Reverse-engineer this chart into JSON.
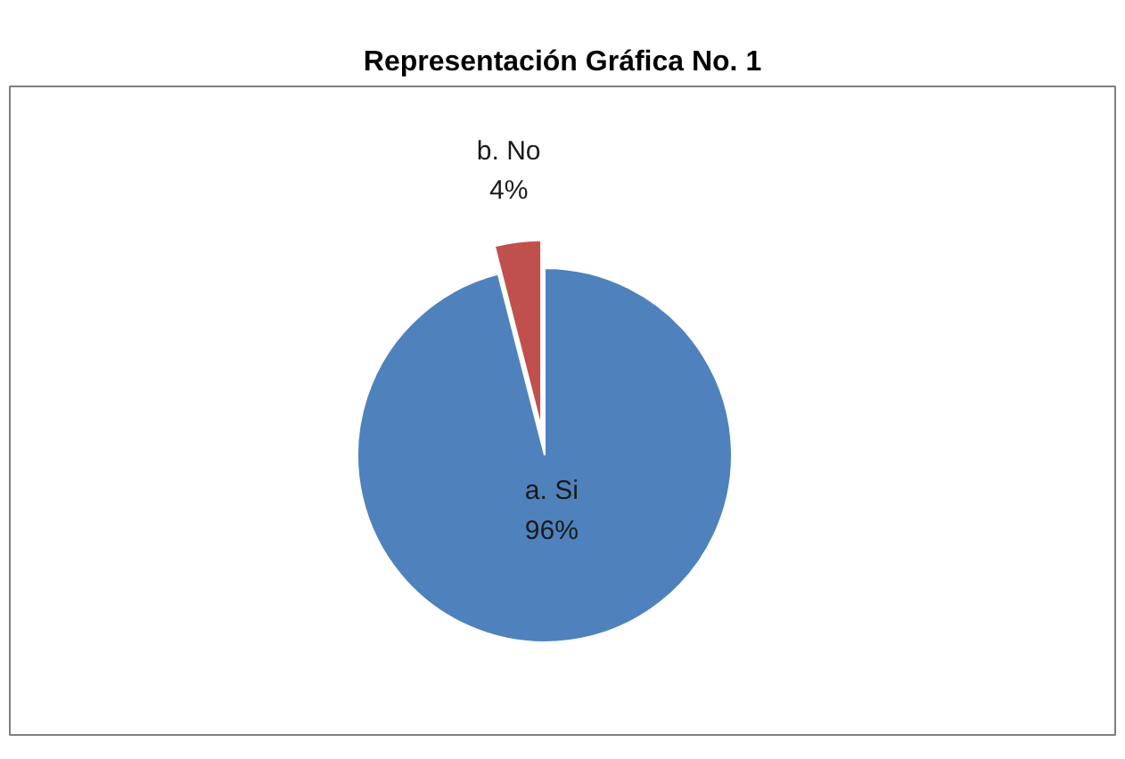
{
  "chart_data": {
    "type": "pie",
    "title": "Representación Gráfica No. 1",
    "categories": [
      "a. Si",
      "b. No"
    ],
    "values": [
      96,
      4
    ],
    "colors": [
      "#4f81bd",
      "#c0504d"
    ],
    "value_labels": [
      "96%",
      "4%"
    ]
  }
}
